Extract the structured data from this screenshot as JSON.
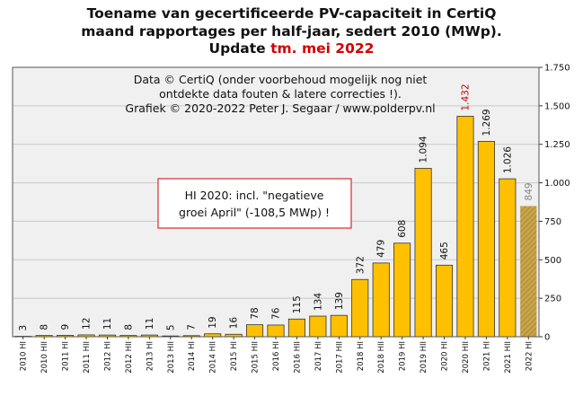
{
  "title": {
    "line1": "Toename van gecertificeerde PV-capaciteit in CertiQ",
    "line2": "maand rapportages per half-jaar, sedert 2010 (MWp).",
    "line3_prefix": "Update ",
    "line3_highlight": "tm. mei 2022"
  },
  "credits": [
    "Data © CertiQ (onder voorbehoud mogelijk nog niet",
    "ontdekte data fouten & latere correcties !).",
    "Grafiek © 2020-2022 Peter J. Segaar / www.polderpv.nl"
  ],
  "annotation": [
    "HI 2020:  incl. \"negatieve",
    "groei April\"  (-108,5 MWp)  !"
  ],
  "colors": {
    "bar": "#ffc000",
    "bar_edge": "#333333",
    "highlight_label": "#c00000",
    "partial_label": "#888888",
    "partial_fill": "#c8a44a",
    "plot_bg": "#f0f0f0",
    "grid": "#c8c8c8",
    "annotation_border": "#d00000"
  },
  "chart_data": {
    "type": "bar",
    "categories": [
      "2010 HI",
      "2010 HII",
      "2011 HI",
      "2011 HII",
      "2012 HI",
      "2012 HII",
      "2013 HI",
      "2013 HII",
      "2014 HI",
      "2014 HII",
      "2015 HI",
      "2015 HII",
      "2016 HI",
      "2016 HII",
      "2017 HI",
      "2017 HII",
      "2018 HI",
      "2018 HII",
      "2019 HI",
      "2019 HII",
      "2020 HI",
      "2020 HII",
      "2021 HI",
      "2021 HII",
      "2022 HI"
    ],
    "values": [
      3,
      8,
      9,
      12,
      11,
      8,
      11,
      5,
      7,
      19,
      16,
      78,
      76,
      115,
      134,
      139,
      372,
      479,
      608,
      1094,
      465,
      1432,
      1269,
      1026,
      849
    ],
    "value_labels": [
      "3",
      "8",
      "9",
      "12",
      "11",
      "8",
      "11",
      "5",
      "7",
      "19",
      "16",
      "78",
      "76",
      "115",
      "134",
      "139",
      "372",
      "479",
      "608",
      "1.094",
      "465",
      "1.432",
      "1.269",
      "1.026",
      "849"
    ],
    "highlight_index": 21,
    "partial_index": 24,
    "ylim": [
      0,
      1750
    ],
    "yticks": [
      0,
      250,
      500,
      750,
      1000,
      1250,
      1500,
      1750
    ],
    "ytick_labels": [
      "0",
      "250",
      "500",
      "750",
      "1.000",
      "1.250",
      "1.500",
      "1.750"
    ],
    "y_axis_side": "right",
    "grid": true,
    "xlabel": "",
    "ylabel": ""
  }
}
